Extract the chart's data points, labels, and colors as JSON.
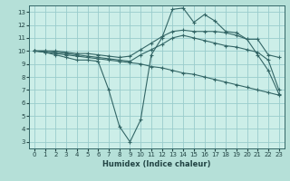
{
  "title": "",
  "xlabel": "Humidex (Indice chaleur)",
  "bg_color": "#b5e0d8",
  "plot_bg_color": "#cceee8",
  "grid_color": "#99cccc",
  "line_color": "#336666",
  "xlim": [
    -0.5,
    23.5
  ],
  "ylim": [
    2.5,
    13.5
  ],
  "xticks": [
    0,
    1,
    2,
    3,
    4,
    5,
    6,
    7,
    8,
    9,
    10,
    11,
    12,
    13,
    14,
    15,
    16,
    17,
    18,
    19,
    20,
    21,
    22,
    23
  ],
  "yticks": [
    3,
    4,
    5,
    6,
    7,
    8,
    9,
    10,
    11,
    12,
    13
  ],
  "lines": [
    {
      "x": [
        0,
        1,
        2,
        3,
        4,
        5,
        6,
        7,
        8,
        9,
        10,
        11,
        12,
        13,
        14,
        15,
        16,
        17,
        18,
        19,
        20,
        21,
        22,
        23
      ],
      "y": [
        10,
        9.9,
        9.7,
        9.5,
        9.3,
        9.3,
        9.2,
        7.0,
        4.2,
        3.0,
        4.7,
        9.7,
        11.0,
        13.2,
        13.3,
        12.2,
        12.8,
        12.3,
        11.5,
        11.4,
        10.9,
        9.7,
        8.5,
        6.7
      ]
    },
    {
      "x": [
        0,
        1,
        2,
        3,
        4,
        5,
        6,
        7,
        8,
        9,
        10,
        11,
        12,
        13,
        14,
        15,
        16,
        17,
        18,
        19,
        20,
        21,
        22,
        23
      ],
      "y": [
        10,
        10,
        10,
        9.9,
        9.8,
        9.8,
        9.7,
        9.6,
        9.5,
        9.6,
        10.1,
        10.6,
        11.1,
        11.5,
        11.6,
        11.5,
        11.5,
        11.5,
        11.4,
        11.2,
        10.9,
        10.9,
        9.7,
        9.5
      ]
    },
    {
      "x": [
        0,
        1,
        2,
        3,
        4,
        5,
        6,
        7,
        8,
        9,
        10,
        11,
        12,
        13,
        14,
        15,
        16,
        17,
        18,
        19,
        20,
        21,
        22,
        23
      ],
      "y": [
        10,
        10,
        9.9,
        9.8,
        9.7,
        9.6,
        9.5,
        9.4,
        9.3,
        9.2,
        9.7,
        10.1,
        10.5,
        11.0,
        11.2,
        11.0,
        10.8,
        10.6,
        10.4,
        10.3,
        10.1,
        9.9,
        9.3,
        7.0
      ]
    },
    {
      "x": [
        0,
        1,
        2,
        3,
        4,
        5,
        6,
        7,
        8,
        9,
        10,
        11,
        12,
        13,
        14,
        15,
        16,
        17,
        18,
        19,
        20,
        21,
        22,
        23
      ],
      "y": [
        10,
        9.9,
        9.8,
        9.7,
        9.6,
        9.5,
        9.4,
        9.3,
        9.2,
        9.1,
        9.0,
        8.8,
        8.7,
        8.5,
        8.3,
        8.2,
        8.0,
        7.8,
        7.6,
        7.4,
        7.2,
        7.0,
        6.8,
        6.6
      ]
    }
  ]
}
